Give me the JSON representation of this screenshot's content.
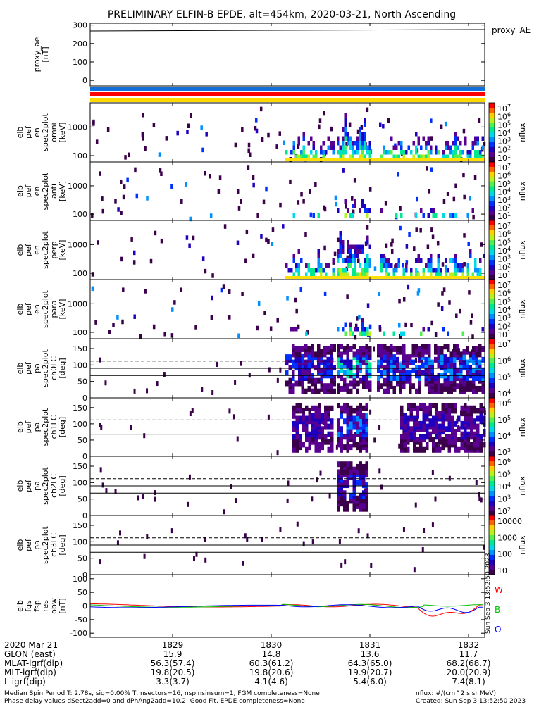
{
  "chart_data": {
    "type": "heatmap",
    "title": "PRELIMINARY ELFIN-B EPDE, alt=454km, 2020-03-21, North Ascending",
    "x_date": "2020 Mar 21",
    "x_ticks": [
      "1829",
      "1830",
      "1831",
      "1832"
    ],
    "panels": [
      {
        "id": "proxy_ae",
        "kind": "line",
        "ylabel_lines": [
          "proxy_ae",
          "[nT]"
        ],
        "right_label": "proxy_AE",
        "yticks": [
          "300",
          "200",
          "100",
          "0"
        ],
        "ylim": [
          -30,
          310
        ],
        "value": 272
      },
      {
        "id": "flags",
        "kind": "bars",
        "colors": [
          "#1070d8",
          "#ff0000",
          "#ffd800"
        ]
      },
      {
        "id": "en_omni",
        "kind": "spectrogram",
        "ylabel_lines": [
          "elb",
          "pef",
          "en",
          "spec2plot",
          "omni",
          "[keV]"
        ],
        "yticks": [
          "1000",
          "100"
        ],
        "ylog": true,
        "ylim": [
          60,
          7000
        ],
        "colorbar": {
          "label": "nflux",
          "ticks": [
            "10^7",
            "10^6",
            "10^5",
            "10^4",
            "10^3",
            "10^2",
            "10^1"
          ]
        }
      },
      {
        "id": "en_anti",
        "kind": "spectrogram",
        "ylabel_lines": [
          "elb",
          "pef",
          "en",
          "spec2plot",
          "anti",
          "[keV]"
        ],
        "yticks": [
          "1000",
          "100"
        ],
        "ylog": true,
        "ylim": [
          60,
          7000
        ],
        "colorbar": {
          "label": "nflux",
          "ticks": [
            "10^7",
            "10^6",
            "10^5",
            "10^4",
            "10^3",
            "10^2",
            "10^1"
          ]
        }
      },
      {
        "id": "en_perp",
        "kind": "spectrogram",
        "ylabel_lines": [
          "elb",
          "pef",
          "en",
          "spec2plot",
          "perp",
          "[keV]"
        ],
        "yticks": [
          "1000",
          "100"
        ],
        "ylog": true,
        "ylim": [
          60,
          7000
        ],
        "colorbar": {
          "label": "nflux",
          "ticks": [
            "10^7",
            "10^6",
            "10^5",
            "10^4",
            "10^3",
            "10^2",
            "10^1"
          ]
        }
      },
      {
        "id": "en_para",
        "kind": "spectrogram",
        "ylabel_lines": [
          "elb",
          "pef",
          "en",
          "spec2plot",
          "para",
          "[keV]"
        ],
        "yticks": [
          "1000",
          "100"
        ],
        "ylog": true,
        "ylim": [
          60,
          7000
        ],
        "colorbar": {
          "label": "nflux",
          "ticks": [
            "10^7",
            "10^6",
            "10^5",
            "10^4",
            "10^3",
            "10^2",
            "10^1"
          ]
        }
      },
      {
        "id": "pa_ch0",
        "kind": "pitch",
        "ylabel_lines": [
          "elb",
          "pef",
          "pa",
          "spec2plot",
          "ch0LC",
          "[deg]"
        ],
        "yticks": [
          "150",
          "100",
          "50",
          "0"
        ],
        "ylim": [
          0,
          180
        ],
        "colorbar": {
          "label": "nflux",
          "ticks": [
            "10^7",
            "10^6",
            "10^5",
            "10^4"
          ]
        }
      },
      {
        "id": "pa_ch1",
        "kind": "pitch",
        "ylabel_lines": [
          "elb",
          "pef",
          "pa",
          "spec2plot",
          "ch1LC",
          "[deg]"
        ],
        "yticks": [
          "150",
          "100",
          "50",
          "0"
        ],
        "ylim": [
          0,
          180
        ],
        "colorbar": {
          "label": "nflux",
          "ticks": [
            "10^6",
            "10^5",
            "10^4",
            "10^3"
          ]
        }
      },
      {
        "id": "pa_ch2",
        "kind": "pitch",
        "ylabel_lines": [
          "elb",
          "pef",
          "pa",
          "spec2plot",
          "ch2LC",
          "[deg]"
        ],
        "yticks": [
          "150",
          "100",
          "50",
          "0"
        ],
        "ylim": [
          0,
          180
        ],
        "colorbar": {
          "label": "nflux",
          "ticks": [
            "10^6",
            "10^5",
            "10^4",
            "10^3",
            "10^2"
          ]
        }
      },
      {
        "id": "pa_ch3",
        "kind": "pitch",
        "ylabel_lines": [
          "elb",
          "pef",
          "pa",
          "spec2plot",
          "ch3LC",
          "[deg]"
        ],
        "yticks": [
          "150",
          "100",
          "50",
          "0"
        ],
        "ylim": [
          0,
          180
        ],
        "colorbar": {
          "label": "nflux",
          "ticks": [
            "10000",
            "1000",
            "100",
            "10"
          ]
        }
      },
      {
        "id": "bw",
        "kind": "line",
        "ylabel_lines": [
          "elb",
          "fgs",
          "fsp",
          "res",
          "obw",
          "[nT]"
        ],
        "yticks": [
          "100",
          "50",
          "0",
          "-50",
          "-100"
        ],
        "ylim": [
          -115,
          115
        ],
        "legend": [
          "W",
          "B",
          "O"
        ],
        "legend_colors": [
          "#ff0000",
          "#00c000",
          "#0000ff"
        ],
        "side_note": "Sun Sep 3 13:52:50 2023"
      }
    ],
    "footer_rows": [
      {
        "label": "2020 Mar 21",
        "values": [
          "",
          "",
          "",
          ""
        ]
      },
      {
        "label": "GLON (east)",
        "values": [
          "15.9",
          "14.8",
          "13.6",
          "11.7"
        ]
      },
      {
        "label": "MLAT-igrf(dip)",
        "values": [
          "56.3(57.4)",
          "60.3(61.2)",
          "64.3(65.0)",
          "68.2(68.7)"
        ]
      },
      {
        "label": "MLT-igrf(dip)",
        "values": [
          "19.8(20.5)",
          "19.8(20.6)",
          "19.9(20.7)",
          "20.0(20.9)"
        ]
      },
      {
        "label": "L-igrf(dip)",
        "values": [
          "3.3(3.7)",
          "4.1(4.6)",
          "5.4(6.0)",
          "7.4(8.1)"
        ]
      }
    ],
    "notes": {
      "left1": "Median Spin Period T: 2.78s, sig=0.00% T, nsectors=16, nspinsinsum=1, FGM completeness=None",
      "left2": "Phase delay values dSect2add=0 and dPhAng2add=10.2, Good Fit, EPDE completeness=None",
      "right1": "nflux: #/(cm^2 s sr MeV)",
      "right2": "Created: Sun Sep  3 13:52:50 2023"
    }
  }
}
